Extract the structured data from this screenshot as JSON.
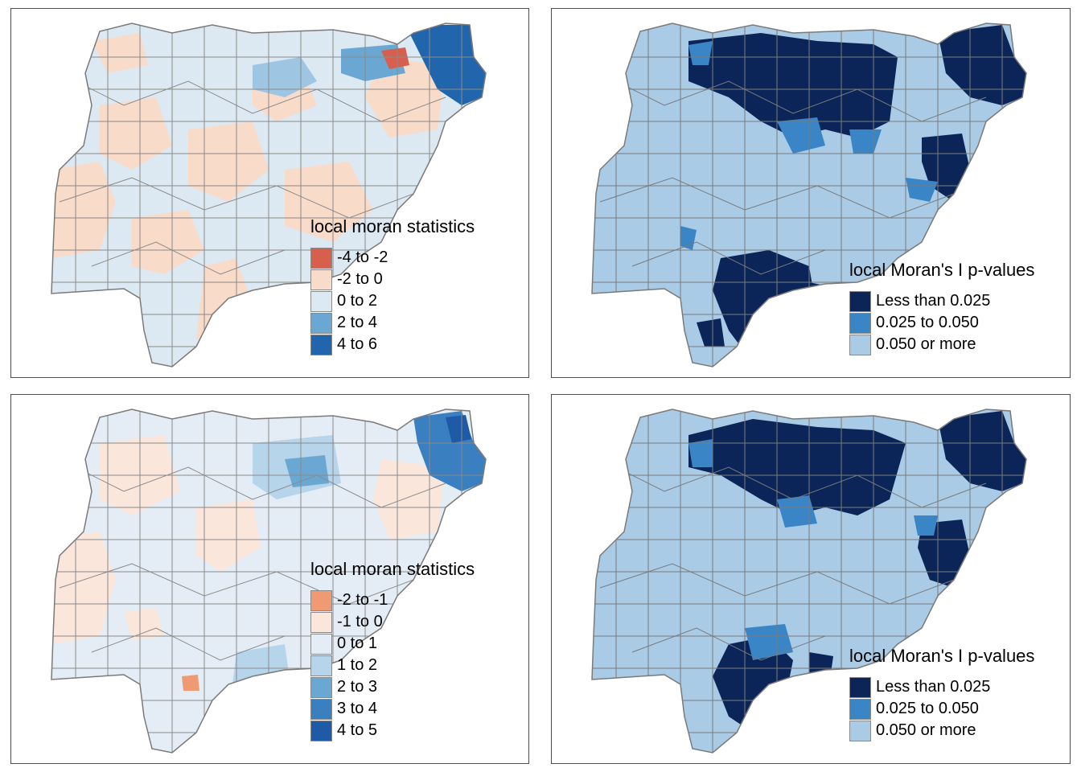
{
  "panels": [
    {
      "id": "top-left",
      "variable": "local moran statistics",
      "legend": {
        "title": "local moran statistics",
        "items": [
          {
            "label": "-4 to -2",
            "color": "#d6604d"
          },
          {
            "label": "-2 to 0",
            "color": "#f9dbc9"
          },
          {
            "label": "0 to 2",
            "color": "#dce9f3"
          },
          {
            "label": "2 to 4",
            "color": "#6aa8d3"
          },
          {
            "label": "4 to 6",
            "color": "#2166ac"
          }
        ]
      }
    },
    {
      "id": "top-right",
      "variable": "local Moran's I p-values",
      "legend": {
        "title": "local Moran's I p-values",
        "items": [
          {
            "label": "Less than 0.025",
            "color": "#0b2559"
          },
          {
            "label": "0.025 to 0.050",
            "color": "#3a85c6"
          },
          {
            "label": "0.050 or more",
            "color": "#a9cbe6"
          }
        ]
      }
    },
    {
      "id": "bottom-left",
      "variable": "local moran statistics",
      "legend": {
        "title": "local moran statistics",
        "items": [
          {
            "label": "-2 to -1",
            "color": "#ef9a72"
          },
          {
            "label": "-1 to 0",
            "color": "#fbe6dc"
          },
          {
            "label": "0 to 1",
            "color": "#e4edf6"
          },
          {
            "label": "1 to 2",
            "color": "#b6d4ea"
          },
          {
            "label": "2 to 3",
            "color": "#6aa8d3"
          },
          {
            "label": "3 to 4",
            "color": "#3a7fbf"
          },
          {
            "label": "4 to 5",
            "color": "#1f5aa6"
          }
        ]
      }
    },
    {
      "id": "bottom-right",
      "variable": "local Moran's I p-values",
      "legend": {
        "title": "local Moran's I p-values",
        "items": [
          {
            "label": "Less than 0.025",
            "color": "#0b2559"
          },
          {
            "label": "0.025 to 0.050",
            "color": "#3a85c6"
          },
          {
            "label": "0.050 or more",
            "color": "#a9cbe6"
          }
        ]
      }
    }
  ]
}
